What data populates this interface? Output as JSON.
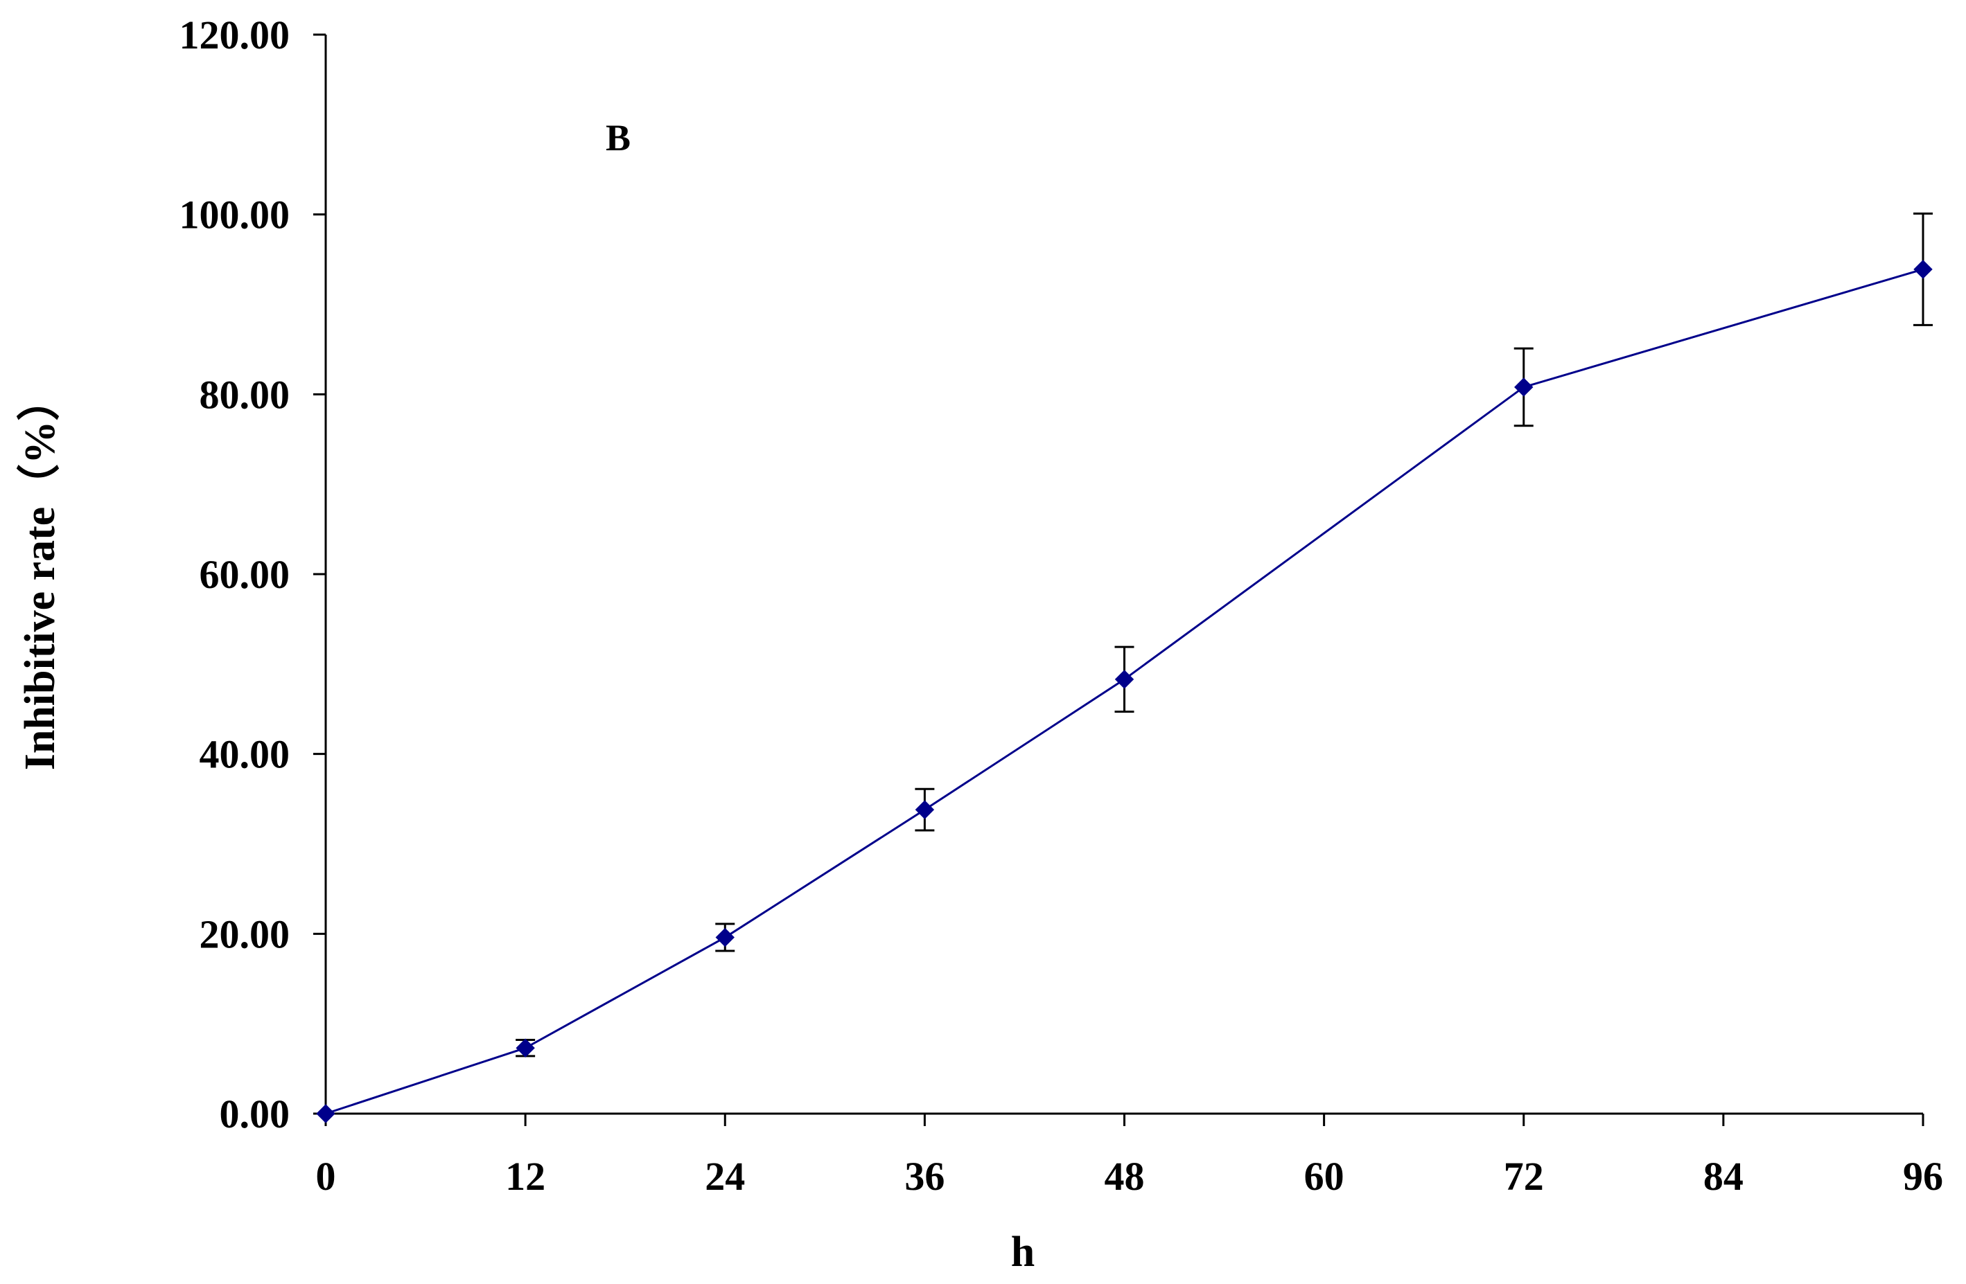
{
  "chart_data": {
    "type": "line",
    "panel_label": "B",
    "xlabel": "h",
    "ylabel": "Inhibitive rate（%）",
    "x_ticks": [
      "0",
      "12",
      "24",
      "36",
      "48",
      "60",
      "72",
      "84",
      "96"
    ],
    "y_ticks": [
      "0.00",
      "20.00",
      "40.00",
      "60.00",
      "80.00",
      "100.00",
      "120.00"
    ],
    "xlim": [
      0,
      96
    ],
    "ylim": [
      0,
      120
    ],
    "grid": false,
    "series": [
      {
        "x": [
          0,
          12,
          24,
          36,
          48,
          72,
          96
        ],
        "y": [
          0,
          7.3,
          19.6,
          33.8,
          48.3,
          80.8,
          93.9
        ],
        "error": [
          0,
          0.9,
          1.5,
          2.3,
          3.6,
          4.3,
          6.2
        ],
        "color": "#00008B",
        "marker": "diamond"
      }
    ]
  }
}
